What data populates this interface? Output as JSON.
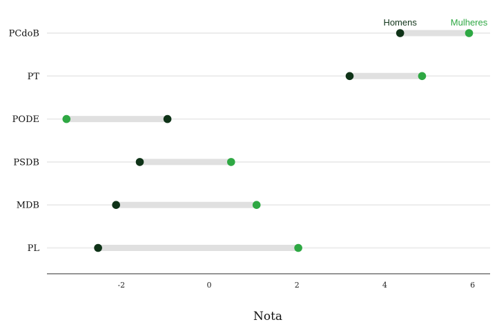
{
  "chart_data": {
    "type": "dumbbell",
    "xlabel": "Nota",
    "xlim": [
      -3.7,
      6.4
    ],
    "xticks": [
      -2,
      0,
      2,
      4,
      6
    ],
    "xtick_labels": [
      "-2",
      "0",
      "2",
      "4",
      "6"
    ],
    "categories": [
      "PCdoB",
      "PT",
      "PODE",
      "PSDB",
      "MDB",
      "PL"
    ],
    "series": [
      {
        "name": "Homens",
        "color": "#0f3318",
        "values": [
          4.35,
          3.2,
          -0.95,
          -1.58,
          -2.12,
          -2.53
        ]
      },
      {
        "name": "Mulheres",
        "color": "#2ea843",
        "values": [
          5.92,
          4.85,
          -3.25,
          0.5,
          1.08,
          2.03
        ]
      }
    ],
    "legend_placement": "top-right",
    "grid": "horizontal",
    "connector_color": "#e0e0e0",
    "gridline_color": "#ececec"
  }
}
